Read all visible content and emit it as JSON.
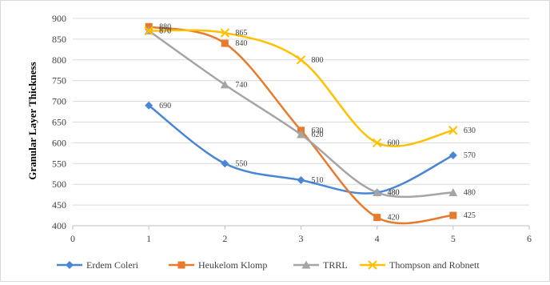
{
  "chart_data": {
    "type": "line",
    "title": "",
    "xlabel": "",
    "ylabel": "Granular Layer Thickness",
    "xlim": [
      0,
      6
    ],
    "ylim": [
      400,
      900
    ],
    "x_ticks": [
      0,
      1,
      2,
      3,
      4,
      5,
      6
    ],
    "y_ticks": [
      400,
      450,
      500,
      550,
      600,
      650,
      700,
      750,
      800,
      850,
      900
    ],
    "grid": "horizontal",
    "legend_position": "bottom",
    "smooth": true,
    "x": [
      1,
      2,
      3,
      4,
      5
    ],
    "series": [
      {
        "name": "Erdem Coleri",
        "color": "#4a86d6",
        "marker": "diamond",
        "values": [
          690,
          550,
          510,
          480,
          570
        ]
      },
      {
        "name": "Heukelom Klomp",
        "color": "#e87a2e",
        "marker": "square",
        "values": [
          880,
          840,
          630,
          420,
          425
        ]
      },
      {
        "name": "TRRL",
        "color": "#a5a5a5",
        "marker": "triangle",
        "values": [
          870,
          740,
          620,
          480,
          480
        ]
      },
      {
        "name": "Thompson and Robnett",
        "color": "#ffc000",
        "marker": "x",
        "values": [
          870,
          865,
          800,
          600,
          630
        ]
      }
    ]
  }
}
